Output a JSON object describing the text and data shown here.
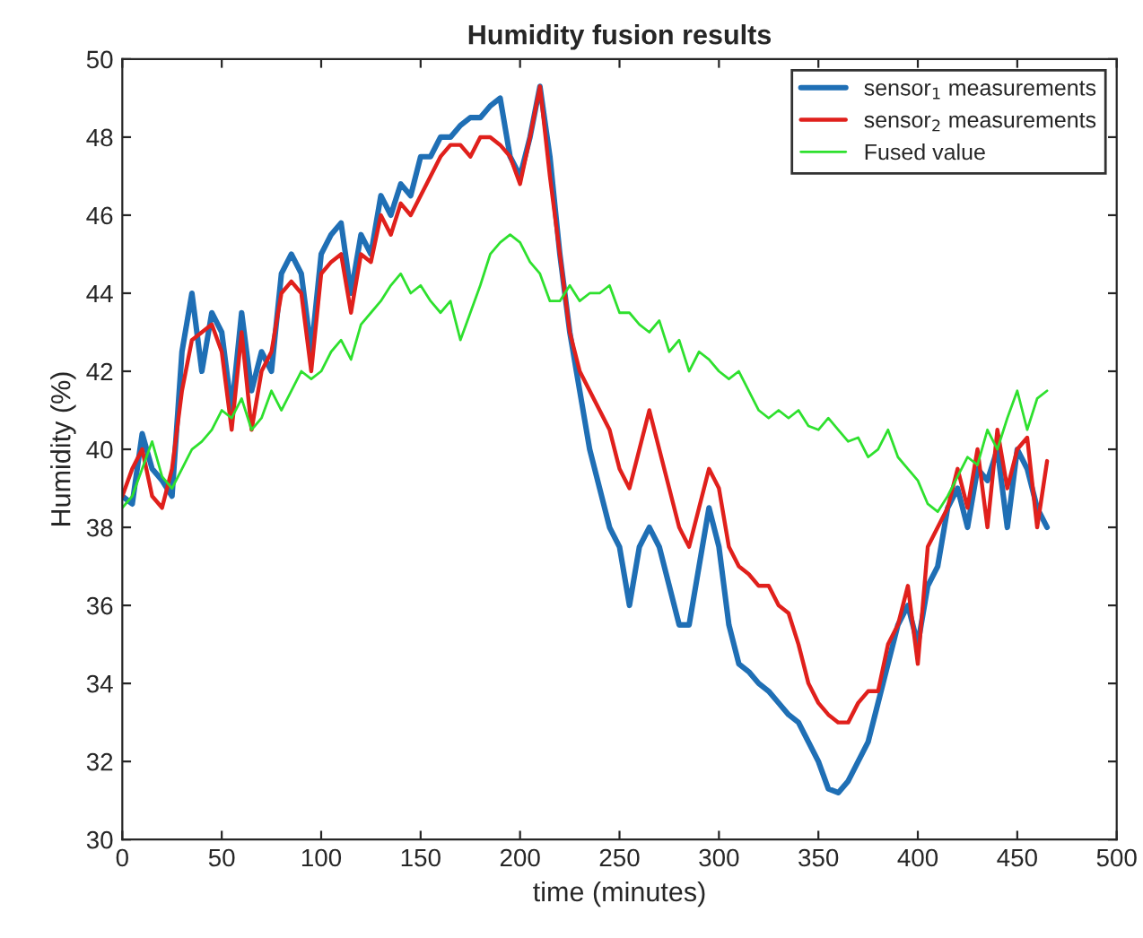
{
  "chart_data": {
    "type": "line",
    "title": "Humidity fusion results",
    "xlabel": "time (minutes)",
    "ylabel": "Humidity (%)",
    "x": [
      0,
      5,
      10,
      15,
      20,
      25,
      30,
      35,
      40,
      45,
      50,
      55,
      60,
      65,
      70,
      75,
      80,
      85,
      90,
      95,
      100,
      105,
      110,
      115,
      120,
      125,
      130,
      135,
      140,
      145,
      150,
      155,
      160,
      165,
      170,
      175,
      180,
      185,
      190,
      195,
      200,
      205,
      210,
      215,
      220,
      225,
      230,
      235,
      240,
      245,
      250,
      255,
      260,
      265,
      270,
      275,
      280,
      285,
      290,
      295,
      300,
      305,
      310,
      315,
      320,
      325,
      330,
      335,
      340,
      345,
      350,
      355,
      360,
      365,
      370,
      375,
      380,
      385,
      390,
      395,
      400,
      405,
      410,
      415,
      420,
      425,
      430,
      435,
      440,
      445,
      450,
      455,
      460,
      465
    ],
    "series": [
      {
        "name": "sensor$_{1}$ measurements",
        "color": "#1f6fb5",
        "values": [
          38.8,
          38.6,
          40.4,
          39.5,
          39.2,
          38.8,
          42.5,
          44,
          42,
          43.5,
          43,
          41,
          43.5,
          41.5,
          42.5,
          42,
          44.5,
          45,
          44.5,
          42.5,
          45,
          45.5,
          45.8,
          44,
          45.5,
          45,
          46.5,
          46,
          46.8,
          46.5,
          47.5,
          47.5,
          48,
          48,
          48.3,
          48.5,
          48.5,
          48.8,
          49,
          47.5,
          47,
          48,
          49.3,
          47.5,
          45,
          43,
          41.5,
          40,
          39,
          38,
          37.5,
          36,
          37.5,
          38,
          37.5,
          36.5,
          35.5,
          35.5,
          37,
          38.5,
          37.5,
          35.5,
          34.5,
          34.3,
          34,
          33.8,
          33.5,
          33.2,
          33,
          32.5,
          32,
          31.3,
          31.2,
          31.5,
          32,
          32.5,
          33.5,
          34.5,
          35.5,
          36,
          35,
          36.5,
          37,
          38.5,
          39,
          38,
          39.5,
          39.2,
          40,
          38,
          40,
          39.5,
          38.5,
          38
        ]
      },
      {
        "name": "sensor$_{2}$ measurements",
        "color": "#e0201c",
        "values": [
          38.8,
          39.5,
          40,
          38.8,
          38.5,
          39.5,
          41.5,
          42.8,
          43,
          43.2,
          42.5,
          40.5,
          43,
          40.5,
          42,
          42.5,
          44,
          44.3,
          44,
          42,
          44.5,
          44.8,
          45,
          43.5,
          45,
          44.8,
          46,
          45.5,
          46.3,
          46,
          46.5,
          47,
          47.5,
          47.8,
          47.8,
          47.5,
          48,
          48,
          47.8,
          47.5,
          46.8,
          48,
          49.3,
          47,
          45,
          43,
          42,
          41.5,
          41,
          40.5,
          39.5,
          39,
          40,
          41,
          40,
          39,
          38,
          37.5,
          38.5,
          39.5,
          39,
          37.5,
          37,
          36.8,
          36.5,
          36.5,
          36,
          35.8,
          35,
          34,
          33.5,
          33.2,
          33,
          33,
          33.5,
          33.8,
          33.8,
          35,
          35.5,
          36.5,
          34.5,
          37.5,
          38,
          38.5,
          39.5,
          38.5,
          40,
          38,
          40.5,
          39,
          40,
          40.3,
          38,
          39.7
        ]
      },
      {
        "name": "Fused value",
        "color": "#2ee02e",
        "values": [
          38.5,
          38.8,
          39.5,
          40.2,
          39.3,
          39,
          39.5,
          40,
          40.2,
          40.5,
          41,
          40.8,
          41.3,
          40.5,
          40.8,
          41.5,
          41,
          41.5,
          42,
          41.8,
          42,
          42.5,
          42.8,
          42.3,
          43.2,
          43.5,
          43.8,
          44.2,
          44.5,
          44,
          44.2,
          43.8,
          43.5,
          43.8,
          42.8,
          43.5,
          44.2,
          45,
          45.3,
          45.5,
          45.3,
          44.8,
          44.5,
          43.8,
          43.8,
          44.2,
          43.8,
          44,
          44,
          44.2,
          43.5,
          43.5,
          43.2,
          43,
          43.3,
          42.5,
          42.8,
          42,
          42.5,
          42.3,
          42,
          41.8,
          42,
          41.5,
          41,
          40.8,
          41,
          40.8,
          41,
          40.6,
          40.5,
          40.8,
          40.5,
          40.2,
          40.3,
          39.8,
          40,
          40.5,
          39.8,
          39.5,
          39.2,
          38.6,
          38.4,
          38.8,
          39.3,
          39.8,
          39.6,
          40.5,
          40,
          40.8,
          41.5,
          40.5,
          41.3,
          41.5
        ]
      }
    ],
    "xlim": [
      0,
      500
    ],
    "xticks": [
      0,
      50,
      100,
      150,
      200,
      250,
      300,
      350,
      400,
      450,
      500
    ],
    "ylim": [
      30,
      50
    ],
    "yticks": [
      30,
      32,
      34,
      36,
      38,
      40,
      42,
      44,
      46,
      48,
      50
    ],
    "legend": "top right",
    "grid": false
  }
}
